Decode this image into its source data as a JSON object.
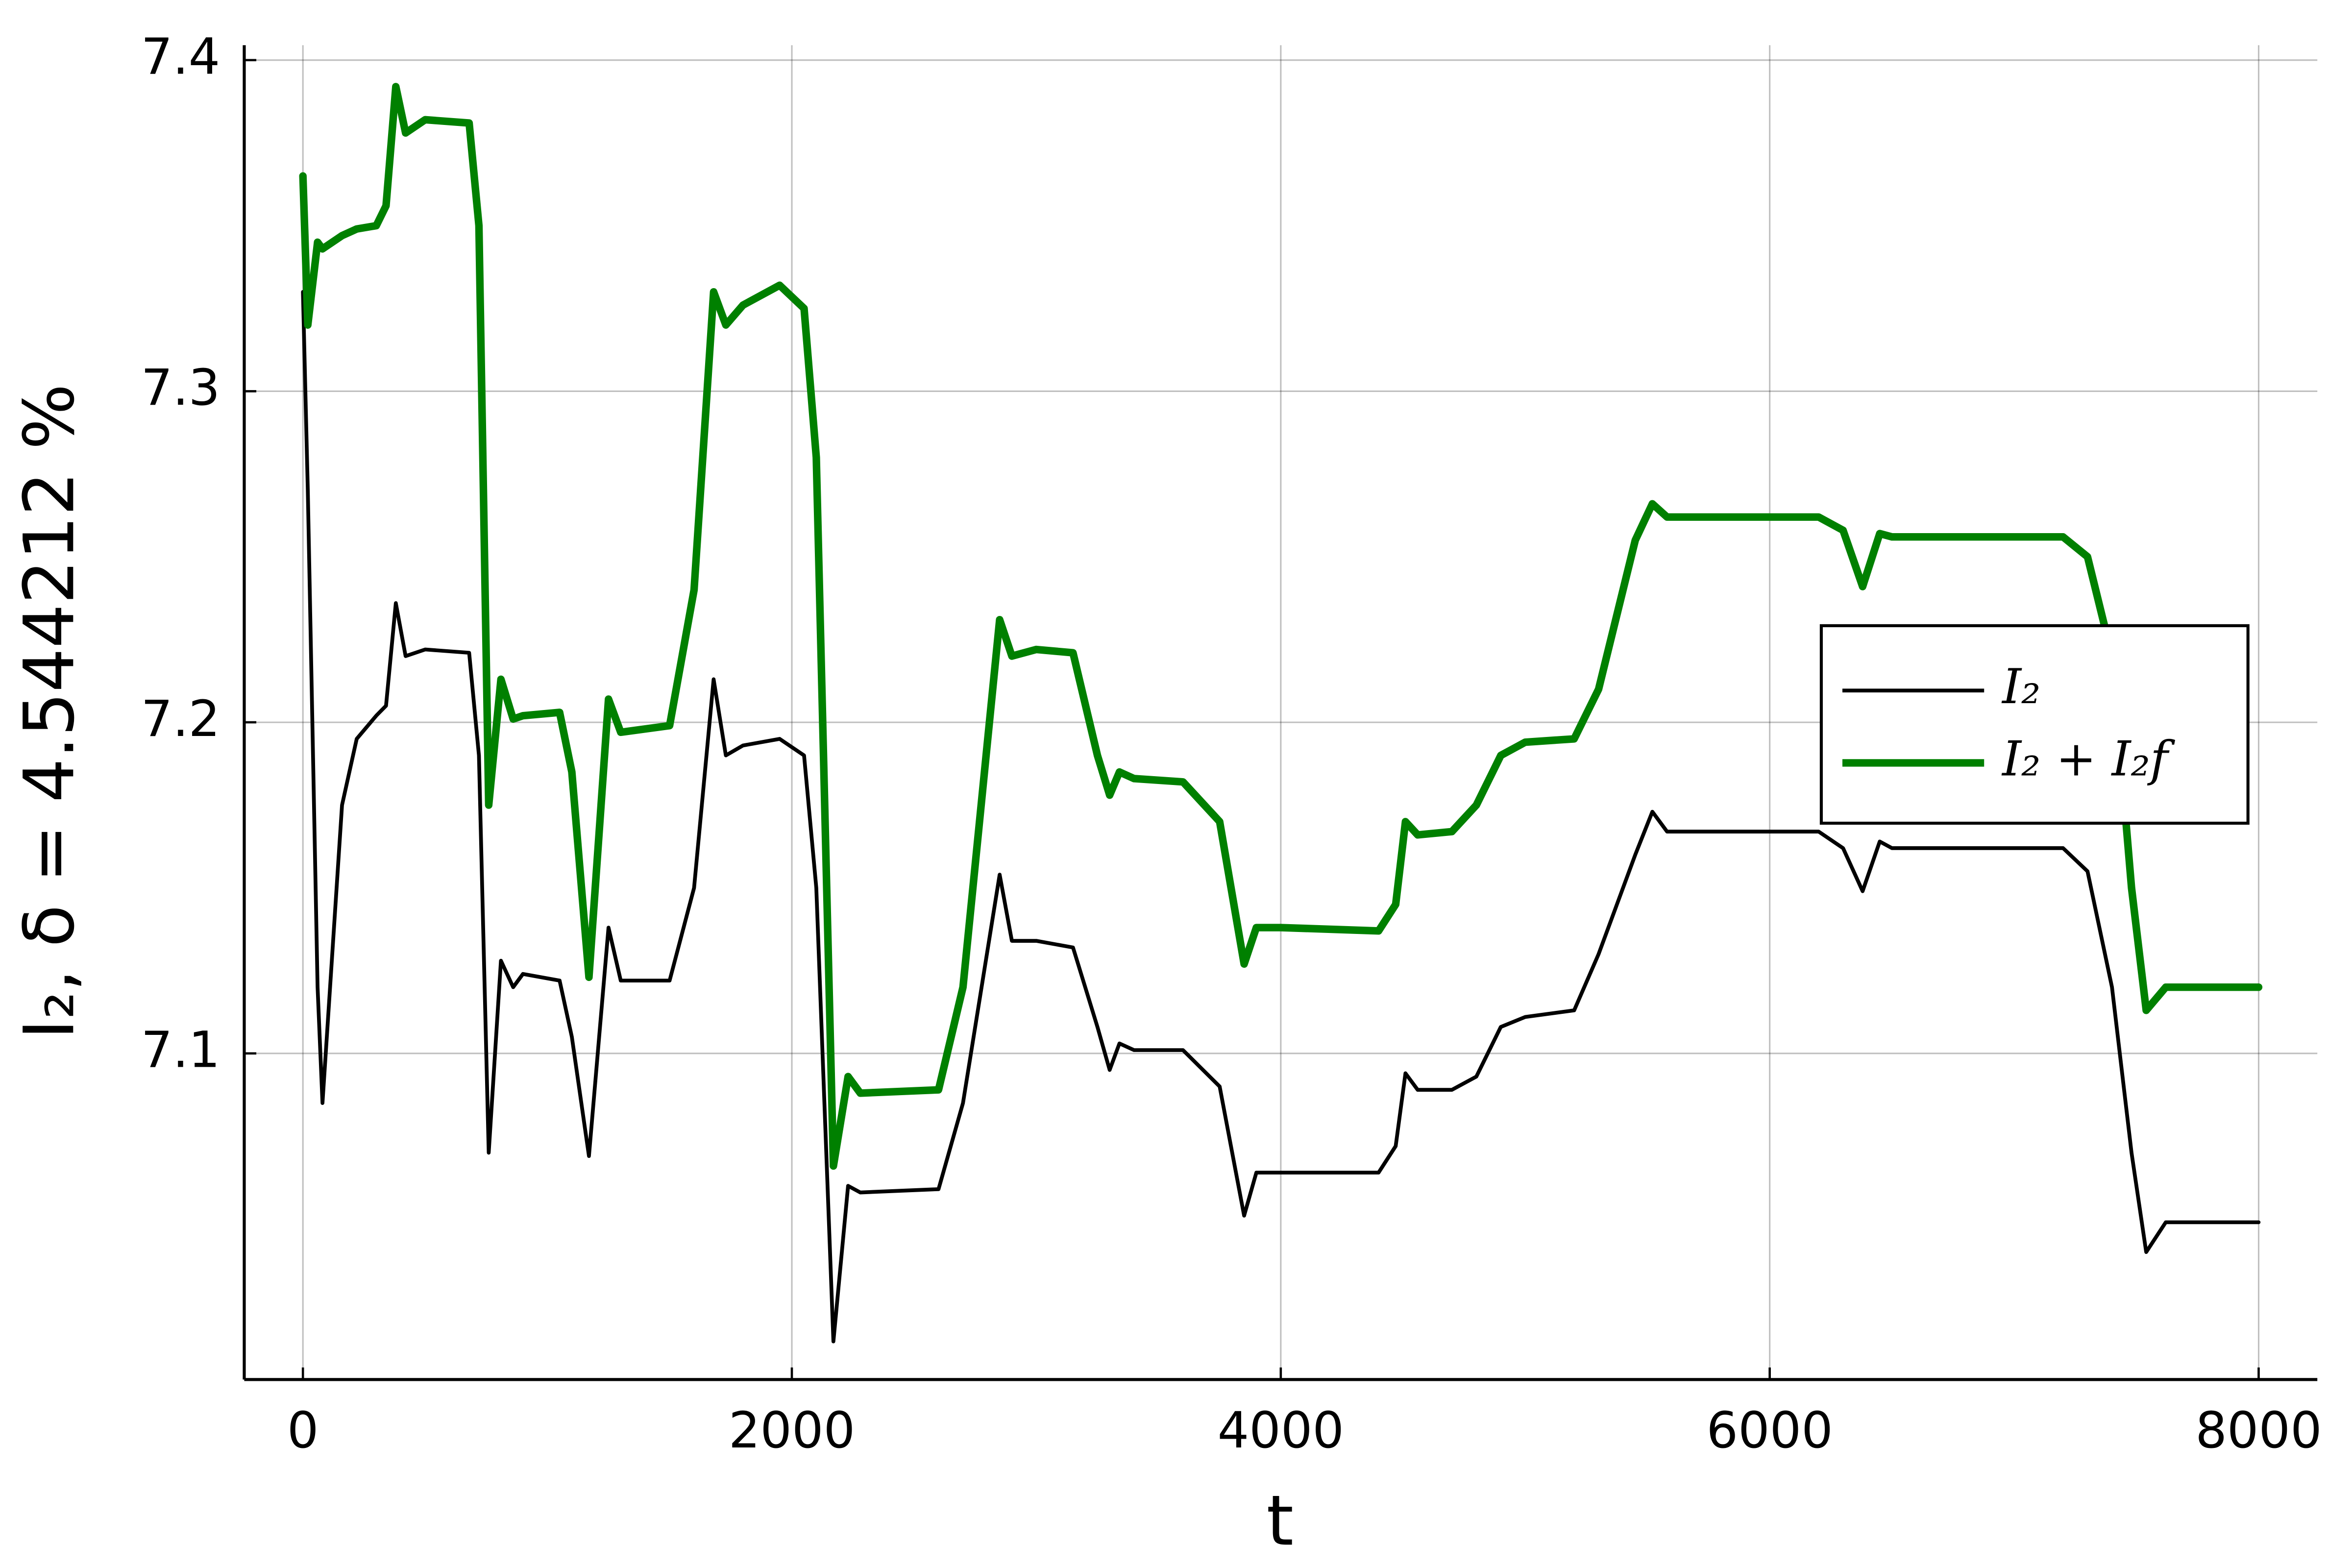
{
  "chart_data": {
    "type": "line",
    "x_label": "t",
    "y_label": "I₂, δ = 4.544212 %",
    "x": [
      0,
      20,
      60,
      80,
      120,
      160,
      220,
      300,
      340,
      380,
      420,
      500,
      680,
      720,
      760,
      810,
      860,
      900,
      1050,
      1100,
      1170,
      1250,
      1300,
      1500,
      1600,
      1680,
      1730,
      1800,
      1950,
      2050,
      2100,
      2170,
      2230,
      2280,
      2600,
      2700,
      2850,
      2900,
      3000,
      3150,
      3250,
      3300,
      3340,
      3400,
      3600,
      3750,
      3850,
      3900,
      4000,
      4400,
      4470,
      4510,
      4560,
      4700,
      4800,
      4900,
      5000,
      5200,
      5300,
      5450,
      5520,
      5580,
      6200,
      6300,
      6380,
      6450,
      6500,
      7200,
      7300,
      7400,
      7480,
      7540,
      7620,
      8000
    ],
    "series": [
      {
        "name": "I₂",
        "color": "#000000",
        "width": 2.5,
        "values": [
          7.33,
          7.27,
          7.12,
          7.085,
          7.13,
          7.175,
          7.195,
          7.202,
          7.205,
          7.236,
          7.22,
          7.222,
          7.221,
          7.19,
          7.07,
          7.128,
          7.12,
          7.124,
          7.122,
          7.105,
          7.069,
          7.138,
          7.122,
          7.122,
          7.15,
          7.213,
          7.19,
          7.193,
          7.195,
          7.19,
          7.15,
          7.013,
          7.06,
          7.058,
          7.059,
          7.085,
          7.154,
          7.134,
          7.134,
          7.132,
          7.108,
          7.095,
          7.103,
          7.101,
          7.101,
          7.09,
          7.051,
          7.064,
          7.064,
          7.064,
          7.072,
          7.094,
          7.089,
          7.089,
          7.093,
          7.108,
          7.111,
          7.113,
          7.13,
          7.16,
          7.173,
          7.167,
          7.167,
          7.162,
          7.149,
          7.164,
          7.162,
          7.162,
          7.155,
          7.12,
          7.07,
          7.04,
          7.049,
          7.049
        ]
      },
      {
        "name": "I₂ + I₂f",
        "color": "#008000",
        "width": 5,
        "values": [
          7.365,
          7.32,
          7.345,
          7.343,
          7.345,
          7.347,
          7.349,
          7.35,
          7.356,
          7.392,
          7.378,
          7.382,
          7.381,
          7.35,
          7.175,
          7.213,
          7.201,
          7.202,
          7.203,
          7.185,
          7.123,
          7.207,
          7.197,
          7.199,
          7.24,
          7.33,
          7.32,
          7.326,
          7.332,
          7.325,
          7.28,
          7.066,
          7.093,
          7.088,
          7.089,
          7.12,
          7.231,
          7.22,
          7.222,
          7.221,
          7.19,
          7.178,
          7.185,
          7.183,
          7.182,
          7.17,
          7.127,
          7.138,
          7.138,
          7.137,
          7.145,
          7.17,
          7.166,
          7.167,
          7.175,
          7.19,
          7.194,
          7.195,
          7.21,
          7.255,
          7.266,
          7.262,
          7.262,
          7.258,
          7.241,
          7.257,
          7.256,
          7.256,
          7.25,
          7.22,
          7.15,
          7.113,
          7.12,
          7.12
        ]
      }
    ],
    "xlim": [
      -240,
      8240
    ],
    "xticks": [
      0,
      2000,
      4000,
      6000,
      8000
    ],
    "ylim": [
      7.0015,
      7.4045
    ],
    "yticks": [
      7.1,
      7.2,
      7.3,
      7.4
    ],
    "grid": true,
    "legend": "right"
  }
}
